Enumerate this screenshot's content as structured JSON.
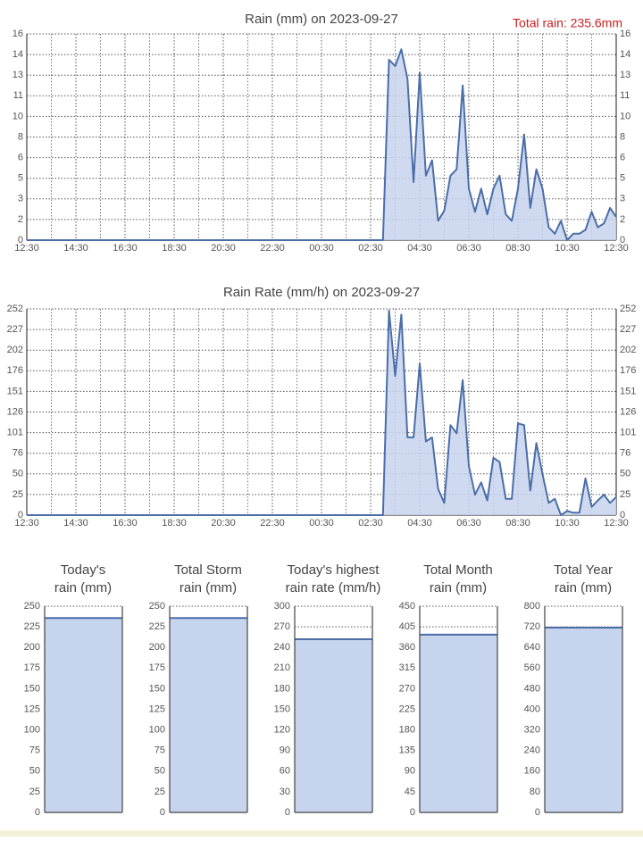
{
  "chart_data": [
    {
      "type": "area",
      "title": "Rain (mm) on 2023-09-27",
      "annotation": "Total rain: 235.6mm",
      "x": [
        "12:30",
        "02:30",
        "02:45",
        "03:00",
        "03:15",
        "03:30",
        "03:45",
        "04:00",
        "04:15",
        "04:30",
        "04:45",
        "05:00",
        "05:15",
        "05:30",
        "05:45",
        "06:00",
        "06:15",
        "06:30",
        "06:45",
        "07:00",
        "07:15",
        "07:30",
        "07:45",
        "08:00",
        "08:15",
        "08:30",
        "08:45",
        "09:00",
        "09:15",
        "09:30",
        "09:45",
        "10:00",
        "10:15",
        "10:30",
        "10:45",
        "11:00",
        "11:15",
        "11:30",
        "11:45",
        "12:00",
        "12:15",
        "12:30"
      ],
      "values": [
        0,
        0,
        0,
        0,
        14,
        13.5,
        14.8,
        12.5,
        4.5,
        13,
        5,
        6.2,
        1.5,
        2.3,
        5,
        5.5,
        12,
        4,
        2.2,
        4,
        2,
        4,
        5,
        2,
        1.5,
        4,
        8.2,
        2.5,
        5.5,
        4,
        1,
        0.5,
        1.5,
        0,
        0.5,
        0.5,
        0.8,
        2.2,
        1,
        1.3,
        2.5,
        1.8
      ],
      "color": "#c7d4ee",
      "line_color": "#4b6ea8",
      "xlim": [
        "12:30",
        "12:30"
      ],
      "xticks": [
        "12:30",
        "14:30",
        "16:30",
        "18:30",
        "20:30",
        "22:30",
        "00:30",
        "02:30",
        "04:30",
        "06:30",
        "08:30",
        "10:30",
        "12:30"
      ],
      "ylim": [
        0,
        16
      ],
      "yticks": [
        0,
        {
          "value": 1.6,
          "label": "2"
        },
        {
          "value": 3.2,
          "label": "3"
        },
        {
          "value": 4.8,
          "label": "5"
        },
        {
          "value": 6.4,
          "label": "6"
        },
        8,
        {
          "value": 9.6,
          "label": "10"
        },
        {
          "value": 11.2,
          "label": "11"
        },
        {
          "value": 12.8,
          "label": "13"
        },
        {
          "value": 14.4,
          "label": "14"
        },
        16
      ],
      "grid": true
    },
    {
      "type": "area",
      "title": "Rain Rate (mm/h) on 2023-09-27",
      "x": [
        "12:30",
        "02:30",
        "02:45",
        "03:00",
        "03:15",
        "03:30",
        "03:45",
        "04:00",
        "04:15",
        "04:30",
        "04:45",
        "05:00",
        "05:15",
        "05:30",
        "05:45",
        "06:00",
        "06:15",
        "06:30",
        "06:45",
        "07:00",
        "07:15",
        "07:30",
        "07:45",
        "08:00",
        "08:15",
        "08:30",
        "08:45",
        "09:00",
        "09:15",
        "09:30",
        "09:45",
        "10:00",
        "10:15",
        "10:30",
        "10:45",
        "11:00",
        "11:15",
        "11:30",
        "11:45",
        "12:00",
        "12:15",
        "12:30"
      ],
      "values": [
        0,
        0,
        0,
        0,
        250,
        170,
        245,
        95,
        95,
        185,
        90,
        95,
        32,
        15,
        110,
        100,
        165,
        60,
        25,
        40,
        18,
        70,
        65,
        20,
        20,
        112,
        110,
        30,
        88,
        50,
        15,
        20,
        0,
        5,
        3,
        3,
        45,
        10,
        18,
        25,
        15,
        22
      ],
      "color": "#c7d4ee",
      "line_color": "#4b6ea8",
      "xlim": [
        "12:30",
        "12:30"
      ],
      "xticks": [
        "12:30",
        "14:30",
        "16:30",
        "18:30",
        "20:30",
        "22:30",
        "00:30",
        "02:30",
        "04:30",
        "06:30",
        "08:30",
        "10:30",
        "12:30"
      ],
      "ylim": [
        0,
        252
      ],
      "yticks": [
        0,
        {
          "value": 25.2,
          "label": "25"
        },
        {
          "value": 50.4,
          "label": "50"
        },
        {
          "value": 75.6,
          "label": "76"
        },
        {
          "value": 100.8,
          "label": "101"
        },
        126,
        {
          "value": 151.2,
          "label": "151"
        },
        {
          "value": 176.4,
          "label": "176"
        },
        {
          "value": 201.6,
          "label": "202"
        },
        {
          "value": 226.8,
          "label": "227"
        },
        252
      ],
      "grid": true
    },
    {
      "type": "bar",
      "title": [
        "Today's",
        "rain (mm)"
      ],
      "value": 235.6,
      "color": "#c7d4ee",
      "line_color": "#4b6ea8",
      "ylim": [
        0,
        250
      ],
      "yticks": [
        0,
        25,
        50,
        75,
        100,
        125,
        150,
        175,
        200,
        225,
        250
      ],
      "grid": true
    },
    {
      "type": "bar",
      "title": [
        "Total Storm",
        "rain (mm)"
      ],
      "value": 235.6,
      "color": "#c7d4ee",
      "line_color": "#4b6ea8",
      "ylim": [
        0,
        250
      ],
      "yticks": [
        0,
        25,
        50,
        75,
        100,
        125,
        150,
        175,
        200,
        225,
        250
      ],
      "grid": true
    },
    {
      "type": "bar",
      "title": [
        "Today's highest",
        "rain rate (mm/h)"
      ],
      "value": 252,
      "color": "#c7d4ee",
      "line_color": "#4b6ea8",
      "ylim": [
        0,
        300
      ],
      "yticks": [
        0,
        30,
        60,
        90,
        120,
        150,
        180,
        210,
        240,
        270,
        300
      ],
      "grid": true
    },
    {
      "type": "bar",
      "title": [
        "Total Month",
        "rain (mm)"
      ],
      "value": 388,
      "color": "#c7d4ee",
      "line_color": "#4b6ea8",
      "ylim": [
        0,
        450
      ],
      "yticks": [
        0,
        45,
        90,
        135,
        180,
        225,
        270,
        315,
        360,
        405,
        450
      ],
      "grid": true
    },
    {
      "type": "bar",
      "title": [
        "Total Year",
        "rain (mm)"
      ],
      "value": 717,
      "color": "#c7d4ee",
      "line_color": "#4b6ea8",
      "ylim": [
        0,
        800
      ],
      "yticks": [
        0,
        80,
        160,
        240,
        320,
        400,
        480,
        560,
        640,
        720,
        800
      ],
      "grid": true
    }
  ]
}
